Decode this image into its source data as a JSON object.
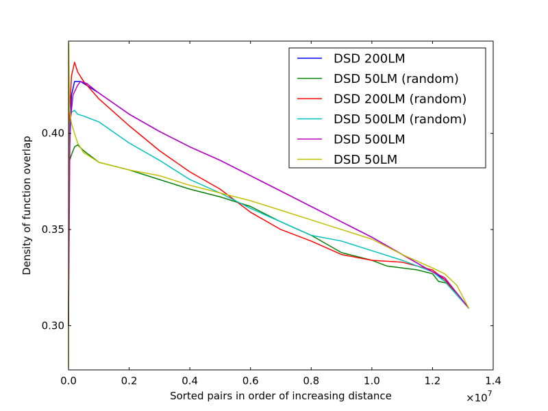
{
  "chart_data": {
    "type": "line",
    "title": "",
    "xlabel": "Sorted pairs in order of increasing distance",
    "ylabel": "Density of function overlap",
    "x_multiplier_label": "×10",
    "x_multiplier_exp": "7",
    "xlim": [
      0.0,
      1.4
    ],
    "ylim": [
      0.277,
      0.448
    ],
    "x_ticks": [
      {
        "value": 0.0,
        "label": "0.0"
      },
      {
        "value": 0.2,
        "label": "0.2"
      },
      {
        "value": 0.4,
        "label": "0.4"
      },
      {
        "value": 0.6,
        "label": "0.6"
      },
      {
        "value": 0.8,
        "label": "0.8"
      },
      {
        "value": 1.0,
        "label": "1.0"
      },
      {
        "value": 1.2,
        "label": "1.2"
      },
      {
        "value": 1.4,
        "label": "1.4"
      }
    ],
    "y_ticks": [
      {
        "value": 0.3,
        "label": "0.30"
      },
      {
        "value": 0.35,
        "label": "0.35"
      },
      {
        "value": 0.4,
        "label": "0.40"
      }
    ],
    "grid": false,
    "legend_position": "top-right",
    "series": [
      {
        "name": "DSD 200LM",
        "color": "#0000ff",
        "points": [
          [
            0.0,
            0.3
          ],
          [
            0.002,
            0.385
          ],
          [
            0.01,
            0.42
          ],
          [
            0.02,
            0.427
          ],
          [
            0.04,
            0.427
          ],
          [
            0.1,
            0.421
          ],
          [
            0.2,
            0.41
          ],
          [
            0.3,
            0.401
          ],
          [
            0.4,
            0.393
          ],
          [
            0.5,
            0.386
          ],
          [
            0.6,
            0.378
          ],
          [
            0.7,
            0.37
          ],
          [
            0.8,
            0.362
          ],
          [
            0.9,
            0.354
          ],
          [
            1.0,
            0.346
          ],
          [
            1.1,
            0.337
          ],
          [
            1.2,
            0.328
          ],
          [
            1.24,
            0.324
          ],
          [
            1.28,
            0.317
          ],
          [
            1.32,
            0.309
          ]
        ]
      },
      {
        "name": "DSD 50LM (random)",
        "color": "#008000",
        "points": [
          [
            0.0,
            0.3
          ],
          [
            0.002,
            0.385
          ],
          [
            0.01,
            0.389
          ],
          [
            0.02,
            0.393
          ],
          [
            0.03,
            0.394
          ],
          [
            0.05,
            0.391
          ],
          [
            0.1,
            0.385
          ],
          [
            0.2,
            0.381
          ],
          [
            0.3,
            0.376
          ],
          [
            0.4,
            0.371
          ],
          [
            0.5,
            0.367
          ],
          [
            0.6,
            0.362
          ],
          [
            0.7,
            0.354
          ],
          [
            0.8,
            0.347
          ],
          [
            0.9,
            0.338
          ],
          [
            1.0,
            0.334
          ],
          [
            1.05,
            0.331
          ],
          [
            1.15,
            0.329
          ],
          [
            1.2,
            0.327
          ],
          [
            1.22,
            0.323
          ],
          [
            1.25,
            0.322
          ],
          [
            1.28,
            0.317
          ],
          [
            1.32,
            0.309
          ]
        ]
      },
      {
        "name": "DSD 200LM (random)",
        "color": "#ff0000",
        "points": [
          [
            0.0,
            0.3
          ],
          [
            0.003,
            0.41
          ],
          [
            0.01,
            0.43
          ],
          [
            0.02,
            0.437
          ],
          [
            0.03,
            0.432
          ],
          [
            0.05,
            0.427
          ],
          [
            0.1,
            0.418
          ],
          [
            0.2,
            0.404
          ],
          [
            0.3,
            0.391
          ],
          [
            0.4,
            0.38
          ],
          [
            0.5,
            0.371
          ],
          [
            0.6,
            0.359
          ],
          [
            0.7,
            0.35
          ],
          [
            0.8,
            0.344
          ],
          [
            0.9,
            0.337
          ],
          [
            1.0,
            0.334
          ],
          [
            1.1,
            0.333
          ],
          [
            1.2,
            0.329
          ],
          [
            1.24,
            0.324
          ],
          [
            1.28,
            0.316
          ],
          [
            1.32,
            0.309
          ]
        ]
      },
      {
        "name": "DSD 500LM (random)",
        "color": "#00bfbf",
        "points": [
          [
            0.0,
            0.3
          ],
          [
            0.003,
            0.405
          ],
          [
            0.01,
            0.411
          ],
          [
            0.02,
            0.412
          ],
          [
            0.03,
            0.41
          ],
          [
            0.05,
            0.409
          ],
          [
            0.1,
            0.406
          ],
          [
            0.2,
            0.395
          ],
          [
            0.3,
            0.386
          ],
          [
            0.4,
            0.376
          ],
          [
            0.5,
            0.369
          ],
          [
            0.6,
            0.361
          ],
          [
            0.7,
            0.354
          ],
          [
            0.8,
            0.347
          ],
          [
            0.9,
            0.344
          ],
          [
            1.0,
            0.339
          ],
          [
            1.1,
            0.334
          ],
          [
            1.2,
            0.328
          ],
          [
            1.24,
            0.323
          ],
          [
            1.28,
            0.316
          ],
          [
            1.32,
            0.309
          ]
        ]
      },
      {
        "name": "DSD 500LM",
        "color": "#bf00bf",
        "points": [
          [
            0.0,
            0.3
          ],
          [
            0.005,
            0.405
          ],
          [
            0.015,
            0.42
          ],
          [
            0.03,
            0.425
          ],
          [
            0.04,
            0.427
          ],
          [
            0.06,
            0.426
          ],
          [
            0.1,
            0.421
          ],
          [
            0.2,
            0.41
          ],
          [
            0.3,
            0.401
          ],
          [
            0.4,
            0.393
          ],
          [
            0.5,
            0.386
          ],
          [
            0.6,
            0.378
          ],
          [
            0.7,
            0.37
          ],
          [
            0.8,
            0.362
          ],
          [
            0.9,
            0.354
          ],
          [
            1.0,
            0.346
          ],
          [
            1.1,
            0.337
          ],
          [
            1.2,
            0.328
          ],
          [
            1.24,
            0.325
          ],
          [
            1.28,
            0.317
          ],
          [
            1.32,
            0.309
          ]
        ]
      },
      {
        "name": "DSD 50LM",
        "color": "#bfbf00",
        "points": [
          [
            0.0,
            0.278
          ],
          [
            0.001,
            0.447
          ],
          [
            0.003,
            0.413
          ],
          [
            0.01,
            0.405
          ],
          [
            0.02,
            0.4
          ],
          [
            0.03,
            0.395
          ],
          [
            0.05,
            0.39
          ],
          [
            0.1,
            0.385
          ],
          [
            0.2,
            0.381
          ],
          [
            0.3,
            0.378
          ],
          [
            0.4,
            0.373
          ],
          [
            0.5,
            0.369
          ],
          [
            0.6,
            0.365
          ],
          [
            0.7,
            0.36
          ],
          [
            0.8,
            0.355
          ],
          [
            0.9,
            0.35
          ],
          [
            1.0,
            0.345
          ],
          [
            1.1,
            0.337
          ],
          [
            1.2,
            0.33
          ],
          [
            1.24,
            0.327
          ],
          [
            1.28,
            0.321
          ],
          [
            1.32,
            0.309
          ]
        ]
      }
    ]
  }
}
